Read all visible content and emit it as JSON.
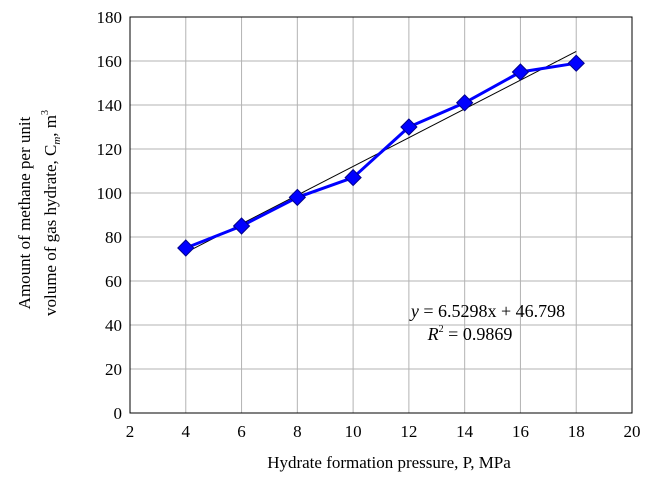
{
  "chart_data": {
    "type": "scatter",
    "xlabel": "Hydrate formation pressure, P, MPa",
    "ylabel_line1": "Amount of methane per unit",
    "ylabel_line2": "volume of gas hydrate, C",
    "ylabel_subscript": "m",
    "ylabel_unit": "m",
    "ylabel_unit_superscript": "3",
    "xlim": [
      2,
      20
    ],
    "ylim": [
      0,
      180
    ],
    "xticks": [
      2,
      4,
      6,
      8,
      10,
      12,
      14,
      16,
      18,
      20
    ],
    "yticks": [
      0,
      20,
      40,
      60,
      80,
      100,
      120,
      140,
      160,
      180
    ],
    "grid": true,
    "series": [
      {
        "x": [
          4,
          6,
          8,
          10,
          12,
          14,
          16,
          18
        ],
        "y": [
          75,
          85,
          98,
          107,
          130,
          141,
          155,
          159
        ],
        "color": "#0000ff",
        "marker": "diamond"
      }
    ],
    "trendline": {
      "slope": 6.5298,
      "intercept": 46.798,
      "x_range": [
        4,
        18
      ],
      "color": "#000000"
    },
    "annotation": {
      "equation_y": "y",
      "equation_rest": " = 6.5298x + 46.798",
      "r2_label": "R",
      "r2_superscript": "2",
      "r2_rest": " = 0.9869"
    }
  }
}
